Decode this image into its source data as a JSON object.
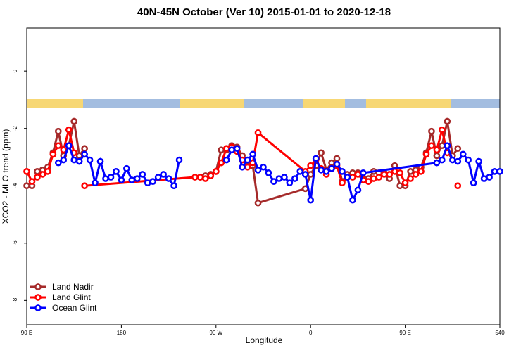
{
  "chart_data": {
    "type": "line",
    "title": "40N-45N October (Ver 10)   2015-01-01 to 2020-12-18",
    "xlabel": "Longitude",
    "ylabel": "XCO2 - MLO trend (ppm)",
    "xlim": [
      90,
      540
    ],
    "ylim": [
      -8.85,
      1.5
    ],
    "xticks": [
      {
        "value": 90,
        "label": "90 E"
      },
      180,
      {
        "value": 270,
        "label": "90 W"
      },
      {
        "value": 360,
        "label": "0"
      },
      {
        "value": 450,
        "label": "90 E"
      },
      540
    ],
    "yticks": [
      -8,
      -6,
      -4,
      -2,
      0
    ],
    "legend": "bottom-left",
    "series": [
      {
        "name": "Land Nadir",
        "color": "#a52a2a",
        "x": [
          90,
          95,
          100,
          105,
          110,
          115,
          120,
          125,
          130,
          135,
          140,
          145,
          250,
          255,
          260,
          265,
          270,
          275,
          280,
          285,
          290,
          295,
          300,
          305,
          310,
          355,
          360,
          365,
          370,
          375,
          380,
          385,
          390,
          395,
          400,
          405,
          410,
          415,
          420,
          425,
          430,
          435,
          440,
          445,
          450,
          455,
          460,
          465,
          470,
          475,
          480,
          485,
          490,
          495,
          500,
          505
        ],
        "values": [
          -4.0,
          -4.0,
          -3.5,
          -3.45,
          -3.35,
          -2.85,
          -2.1,
          -2.95,
          -2.6,
          -1.75,
          -2.95,
          -2.7,
          null,
          -3.7,
          -3.65,
          -3.6,
          -3.5,
          -2.75,
          -2.75,
          -2.6,
          -2.65,
          -2.95,
          -3.15,
          -3.3,
          -4.6,
          -4.1,
          -3.6,
          -3.3,
          -2.85,
          -3.45,
          -3.2,
          -3.05,
          -3.85,
          -3.6,
          -3.55,
          -3.55,
          -3.75,
          -3.75,
          -3.5,
          -3.55,
          -3.55,
          -3.75,
          -3.3,
          -4.0,
          -4.0,
          -3.5,
          -3.45,
          -3.35,
          -2.85,
          -2.1,
          -2.95,
          -2.6,
          -1.75,
          -2.95,
          -2.7,
          null
        ]
      },
      {
        "name": "Land Glint",
        "color": "#ff0000",
        "x": [
          90,
          95,
          100,
          105,
          110,
          115,
          120,
          125,
          130,
          135,
          140,
          145,
          250,
          255,
          260,
          265,
          270,
          275,
          280,
          285,
          290,
          295,
          300,
          305,
          310,
          355,
          360,
          365,
          370,
          375,
          380,
          385,
          390,
          395,
          400,
          405,
          410,
          415,
          420,
          425,
          430,
          435,
          440,
          445,
          450,
          455,
          460,
          465,
          470,
          475,
          480,
          485,
          490,
          495,
          500
        ],
        "values": [
          -3.5,
          -3.85,
          -3.7,
          -3.6,
          -3.5,
          -2.9,
          -2.6,
          -2.75,
          -2.05,
          -2.85,
          null,
          -4.0,
          -3.7,
          -3.7,
          -3.75,
          -3.65,
          -3.5,
          -3.2,
          -2.7,
          -2.65,
          -2.8,
          -3.1,
          -3.35,
          -3.2,
          -2.15,
          -3.5,
          -3.3,
          -3.1,
          -3.4,
          -3.6,
          -3.4,
          -3.3,
          -3.9,
          -3.7,
          -3.7,
          -3.6,
          -3.8,
          -3.85,
          -3.75,
          -3.7,
          -3.6,
          -3.6,
          -3.5,
          -3.55,
          -3.9,
          -3.75,
          -3.6,
          -3.5,
          -2.9,
          -2.6,
          -2.75,
          -2.05,
          -2.85,
          null,
          -4.0
        ]
      },
      {
        "name": "Ocean Glint",
        "color": "#0000ff",
        "x": [
          120,
          125,
          130,
          135,
          140,
          145,
          150,
          155,
          160,
          165,
          170,
          175,
          180,
          185,
          190,
          195,
          200,
          205,
          210,
          215,
          220,
          225,
          230,
          235,
          275,
          280,
          285,
          290,
          295,
          300,
          305,
          310,
          315,
          320,
          325,
          330,
          335,
          340,
          345,
          350,
          355,
          360,
          365,
          370,
          375,
          380,
          385,
          390,
          395,
          400,
          405,
          410,
          480,
          485,
          490,
          495,
          500,
          505,
          510,
          515,
          520,
          525,
          530,
          535,
          540
        ],
        "values": [
          -3.2,
          -3.1,
          -2.6,
          -3.1,
          -3.15,
          -2.9,
          -3.1,
          -3.9,
          -3.15,
          -3.75,
          -3.7,
          -3.5,
          -3.8,
          -3.4,
          -3.8,
          -3.75,
          -3.6,
          -3.9,
          -3.85,
          -3.7,
          -3.6,
          -3.75,
          -4.0,
          -3.1,
          null,
          -3.1,
          -2.75,
          -2.7,
          -3.35,
          -3.1,
          -2.9,
          -3.45,
          -3.35,
          -3.55,
          -3.85,
          -3.75,
          -3.7,
          -3.9,
          -3.75,
          -3.5,
          -3.6,
          -4.5,
          -3.05,
          -3.45,
          -3.5,
          -3.4,
          -3.25,
          -3.5,
          -3.7,
          -4.5,
          -4.15,
          -3.55,
          -3.2,
          -3.1,
          -2.6,
          -3.1,
          -3.15,
          -2.9,
          -3.1,
          -3.9,
          -3.15,
          -3.75,
          -3.7,
          -3.5,
          -3.5
        ]
      }
    ]
  }
}
